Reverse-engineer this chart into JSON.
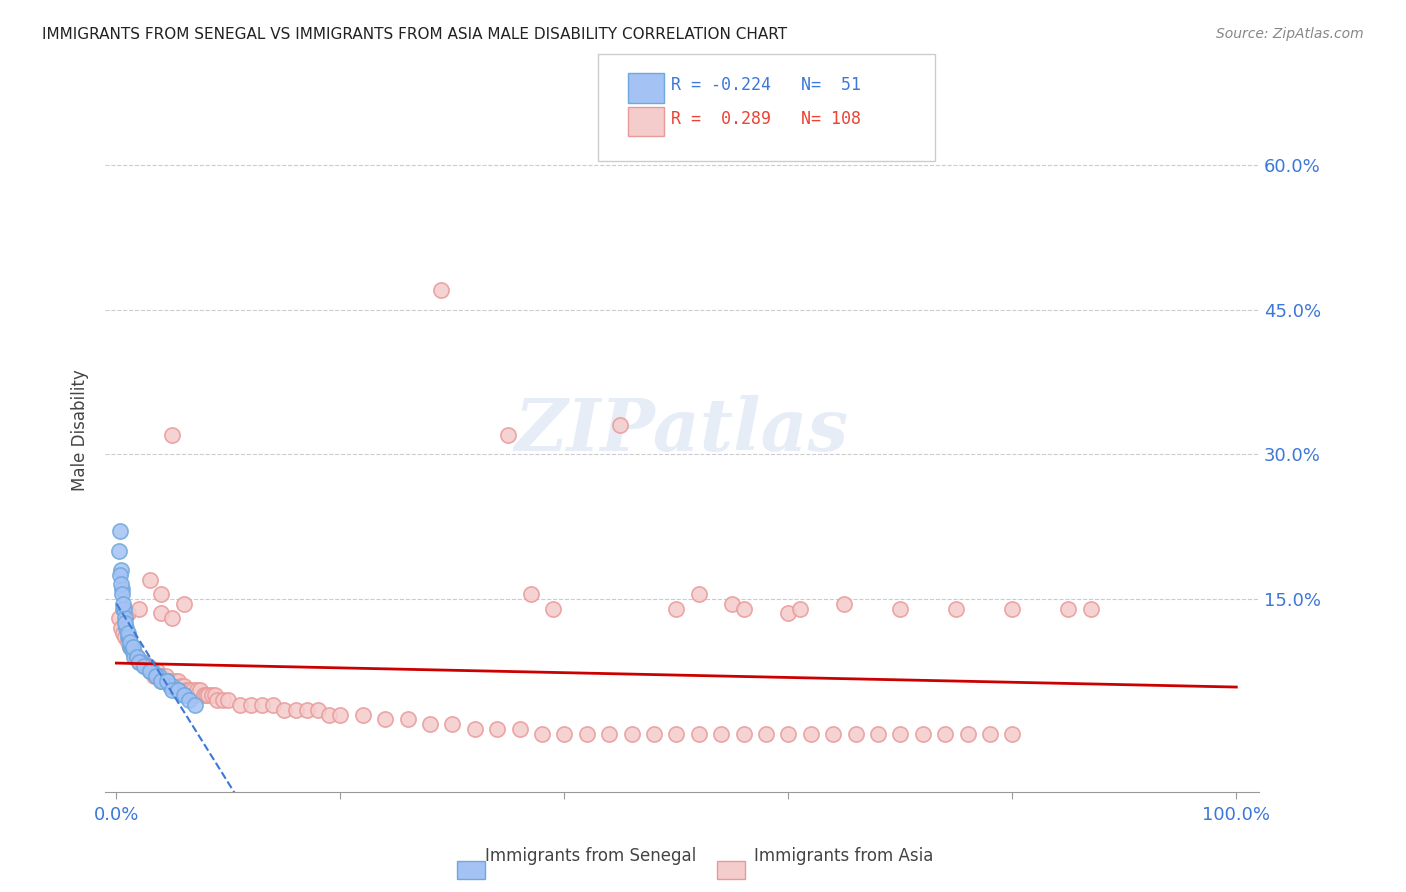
{
  "title": "IMMIGRANTS FROM SENEGAL VS IMMIGRANTS FROM ASIA MALE DISABILITY CORRELATION CHART",
  "source": "Source: ZipAtlas.com",
  "ylabel": "Male Disability",
  "yaxis_labels": [
    "60.0%",
    "45.0%",
    "30.0%",
    "15.0%"
  ],
  "yaxis_values": [
    0.6,
    0.45,
    0.3,
    0.15
  ],
  "color_senegal": "#6fa8dc",
  "color_asia": "#ea9999",
  "color_senegal_fill": "#a4c2f4",
  "color_asia_fill": "#f4cccc",
  "color_line_senegal": "#3c78d8",
  "color_line_asia": "#cc0000",
  "senegal_x": [
    0.003,
    0.004,
    0.005,
    0.006,
    0.007,
    0.008,
    0.009,
    0.01,
    0.011,
    0.012,
    0.013,
    0.014,
    0.015,
    0.016,
    0.018,
    0.02,
    0.022,
    0.025,
    0.028,
    0.03,
    0.032,
    0.035,
    0.038,
    0.04,
    0.042,
    0.045,
    0.048,
    0.05,
    0.055,
    0.06,
    0.002,
    0.003,
    0.004,
    0.005,
    0.006,
    0.008,
    0.01,
    0.012,
    0.015,
    0.018,
    0.02,
    0.025,
    0.03,
    0.035,
    0.04,
    0.045,
    0.05,
    0.055,
    0.06,
    0.065,
    0.07
  ],
  "senegal_y": [
    0.22,
    0.18,
    0.16,
    0.14,
    0.14,
    0.13,
    0.12,
    0.11,
    0.11,
    0.1,
    0.1,
    0.1,
    0.095,
    0.09,
    0.09,
    0.085,
    0.085,
    0.08,
    0.08,
    0.075,
    0.075,
    0.07,
    0.07,
    0.065,
    0.065,
    0.065,
    0.06,
    0.06,
    0.055,
    0.05,
    0.2,
    0.175,
    0.165,
    0.155,
    0.145,
    0.125,
    0.115,
    0.105,
    0.1,
    0.09,
    0.085,
    0.08,
    0.075,
    0.07,
    0.065,
    0.065,
    0.055,
    0.055,
    0.05,
    0.045,
    0.04
  ],
  "asia_x": [
    0.002,
    0.004,
    0.006,
    0.008,
    0.01,
    0.012,
    0.014,
    0.016,
    0.018,
    0.02,
    0.022,
    0.024,
    0.026,
    0.028,
    0.03,
    0.032,
    0.034,
    0.036,
    0.038,
    0.04,
    0.042,
    0.044,
    0.046,
    0.048,
    0.05,
    0.052,
    0.055,
    0.058,
    0.06,
    0.062,
    0.065,
    0.068,
    0.07,
    0.072,
    0.075,
    0.078,
    0.08,
    0.082,
    0.085,
    0.088,
    0.09,
    0.095,
    0.1,
    0.11,
    0.12,
    0.13,
    0.14,
    0.15,
    0.16,
    0.17,
    0.18,
    0.19,
    0.2,
    0.22,
    0.24,
    0.26,
    0.28,
    0.3,
    0.32,
    0.34,
    0.36,
    0.38,
    0.4,
    0.42,
    0.44,
    0.46,
    0.48,
    0.5,
    0.52,
    0.54,
    0.56,
    0.58,
    0.6,
    0.62,
    0.64,
    0.66,
    0.68,
    0.7,
    0.72,
    0.74,
    0.76,
    0.78,
    0.8,
    0.01,
    0.02,
    0.03,
    0.04,
    0.05,
    0.06,
    0.35,
    0.37,
    0.39,
    0.55,
    0.45,
    0.5,
    0.6,
    0.65,
    0.7,
    0.75,
    0.8,
    0.85,
    0.87,
    0.04,
    0.05,
    0.29,
    0.52,
    0.56,
    0.61
  ],
  "asia_y": [
    0.13,
    0.12,
    0.115,
    0.11,
    0.105,
    0.1,
    0.1,
    0.095,
    0.09,
    0.085,
    0.085,
    0.085,
    0.08,
    0.08,
    0.075,
    0.075,
    0.07,
    0.075,
    0.07,
    0.07,
    0.065,
    0.07,
    0.065,
    0.065,
    0.06,
    0.065,
    0.065,
    0.06,
    0.06,
    0.055,
    0.055,
    0.055,
    0.05,
    0.055,
    0.055,
    0.05,
    0.05,
    0.05,
    0.05,
    0.05,
    0.045,
    0.045,
    0.045,
    0.04,
    0.04,
    0.04,
    0.04,
    0.035,
    0.035,
    0.035,
    0.035,
    0.03,
    0.03,
    0.03,
    0.025,
    0.025,
    0.02,
    0.02,
    0.015,
    0.015,
    0.015,
    0.01,
    0.01,
    0.01,
    0.01,
    0.01,
    0.01,
    0.01,
    0.01,
    0.01,
    0.01,
    0.01,
    0.01,
    0.01,
    0.01,
    0.01,
    0.01,
    0.01,
    0.01,
    0.01,
    0.01,
    0.01,
    0.01,
    0.135,
    0.14,
    0.17,
    0.135,
    0.13,
    0.145,
    0.32,
    0.155,
    0.14,
    0.145,
    0.33,
    0.14,
    0.135,
    0.145,
    0.14,
    0.14,
    0.14,
    0.14,
    0.14,
    0.155,
    0.32,
    0.47,
    0.155,
    0.14,
    0.14
  ],
  "xlim": [
    0.0,
    1.0
  ],
  "ylim": [
    -0.05,
    0.7
  ],
  "watermark": "ZIPatlas"
}
